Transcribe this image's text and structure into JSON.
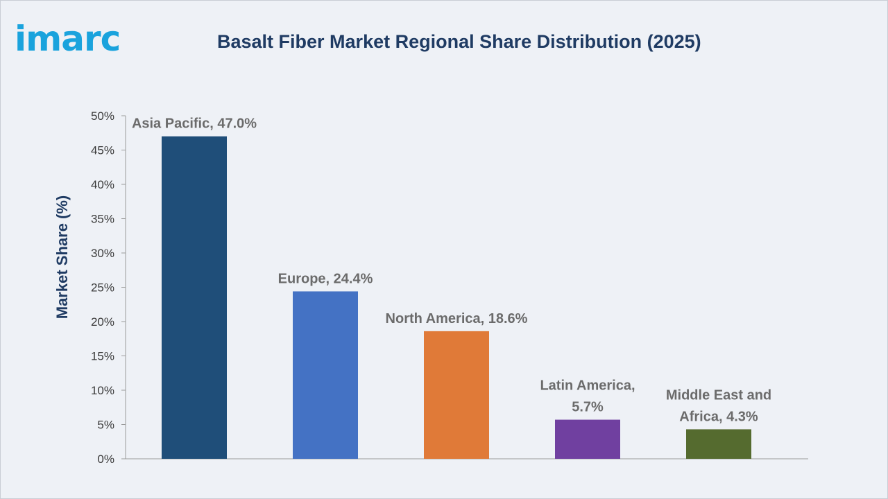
{
  "brand": {
    "logo_text": "imarc"
  },
  "chart_data": {
    "type": "bar",
    "title": "Basalt Fiber Market Regional Share Distribution (2025)",
    "ylabel": "Market Share (%)",
    "xlabel": "",
    "ylim": [
      0,
      50
    ],
    "y_ticks": [
      "0%",
      "5%",
      "10%",
      "15%",
      "20%",
      "25%",
      "30%",
      "35%",
      "40%",
      "45%",
      "50%"
    ],
    "grid": false,
    "categories": [
      "Asia Pacific",
      "Europe",
      "North America",
      "Latin America",
      "Middle East and Africa"
    ],
    "values": [
      47.0,
      24.4,
      18.6,
      5.7,
      4.3
    ],
    "data_labels": [
      [
        "Asia Pacific, 47.0%"
      ],
      [
        "Europe, 24.4%"
      ],
      [
        "North America, 18.6%"
      ],
      [
        "Latin America,",
        "5.7%"
      ],
      [
        "Middle East and",
        "Africa, 4.3%"
      ]
    ],
    "colors": [
      "#1f4e79",
      "#4472c4",
      "#e07a38",
      "#7040a0",
      "#556b2f"
    ]
  }
}
